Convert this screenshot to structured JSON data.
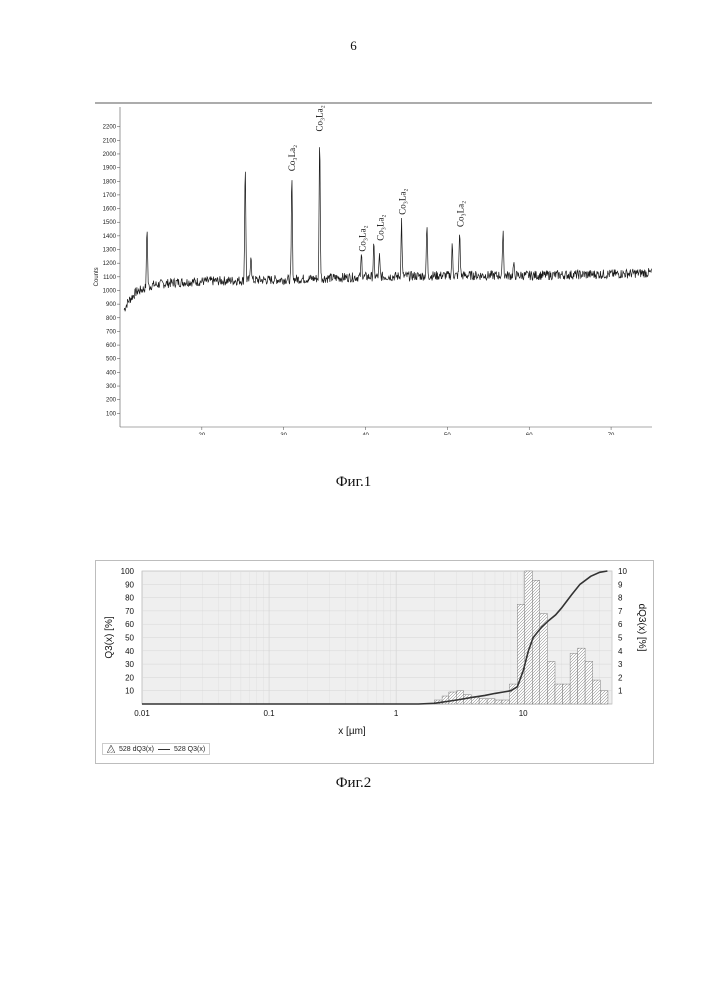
{
  "page": {
    "number": "6"
  },
  "fig1": {
    "caption": "Фиг.1",
    "chart_data": {
      "type": "line",
      "title": "",
      "xlabel": "",
      "ylabel": "Counts",
      "xlim": [
        10,
        75
      ],
      "ylim": [
        0,
        2300
      ],
      "xticks": [
        20,
        30,
        40,
        50,
        60,
        70
      ],
      "yticks": [
        100,
        200,
        300,
        400,
        500,
        600,
        700,
        800,
        900,
        1000,
        1100,
        1200,
        1300,
        1400,
        1500,
        1600,
        1700,
        1800,
        1900,
        2000,
        2100,
        2200
      ],
      "baseline": [
        [
          10.5,
          860
        ],
        [
          11,
          920
        ],
        [
          12,
          990
        ],
        [
          14,
          1040
        ],
        [
          17,
          1060
        ],
        [
          22,
          1070
        ],
        [
          30,
          1080
        ],
        [
          40,
          1100
        ],
        [
          50,
          1110
        ],
        [
          60,
          1110
        ],
        [
          70,
          1120
        ],
        [
          75,
          1130
        ]
      ],
      "peaks": [
        {
          "x": 13.3,
          "y": 1470
        },
        {
          "x": 25.3,
          "y": 1930
        },
        {
          "x": 26.0,
          "y": 1280
        },
        {
          "x": 31.0,
          "y": 1840
        },
        {
          "x": 34.4,
          "y": 2120
        },
        {
          "x": 39.5,
          "y": 1260
        },
        {
          "x": 41.0,
          "y": 1330
        },
        {
          "x": 41.7,
          "y": 1250
        },
        {
          "x": 44.4,
          "y": 1520
        },
        {
          "x": 47.5,
          "y": 1480
        },
        {
          "x": 50.6,
          "y": 1330
        },
        {
          "x": 51.5,
          "y": 1430
        },
        {
          "x": 56.8,
          "y": 1460
        },
        {
          "x": 58.1,
          "y": 1190
        }
      ],
      "annotations": [
        {
          "text": "Co₃La₂",
          "x": 31.0,
          "y": 1860
        },
        {
          "text": "Co₃La₂",
          "x": 34.4,
          "y": 2150
        },
        {
          "text": "Co₃La₂",
          "x": 39.6,
          "y": 1270
        },
        {
          "text": "Co₃La₂",
          "x": 41.8,
          "y": 1350
        },
        {
          "text": "Co₃La₂",
          "x": 44.5,
          "y": 1540
        },
        {
          "text": "Co₃La₂",
          "x": 51.6,
          "y": 1450
        }
      ]
    }
  },
  "fig2": {
    "caption": "Фиг.2",
    "chart_data": {
      "type": "bar",
      "xlabel": "x [µm]",
      "ylabel": "Q3(x) [%]",
      "y2label": "dQ3(x) [%]",
      "xscale": "log",
      "xlim": [
        0.01,
        50
      ],
      "ylim": [
        0,
        100
      ],
      "y2lim": [
        0,
        10
      ],
      "xticks": [
        "0.01",
        "0.1",
        "1",
        "10"
      ],
      "yticks": [
        10,
        20,
        30,
        40,
        50,
        60,
        70,
        80,
        90,
        100
      ],
      "y2ticks": [
        1,
        2,
        3,
        4,
        5,
        6,
        7,
        8,
        9,
        10
      ],
      "series": [
        {
          "name": "528 dQ3(x)",
          "type": "histogram",
          "x": [
            2.0,
            2.3,
            2.6,
            3.0,
            3.4,
            3.9,
            4.5,
            5.2,
            6.0,
            6.8,
            7.8,
            9.0,
            10.3,
            11.8,
            13.5,
            15.5,
            17.8,
            20.4,
            23.4,
            26.8,
            30.7,
            35.2,
            40.4
          ],
          "values": [
            0.3,
            0.6,
            0.9,
            1.0,
            0.7,
            0.5,
            0.4,
            0.4,
            0.3,
            0.3,
            1.5,
            7.5,
            10.0,
            9.3,
            6.8,
            3.2,
            1.5,
            1.5,
            3.8,
            4.2,
            3.2,
            1.8,
            1.0
          ]
        },
        {
          "name": "528 Q3(x)",
          "type": "line",
          "x": [
            0.01,
            1.5,
            2.0,
            3.0,
            4.0,
            5.0,
            6.0,
            7.0,
            8.0,
            9.0,
            10.0,
            11.0,
            12.0,
            14.0,
            16.0,
            18.0,
            20.0,
            24.0,
            28.0,
            34.0,
            40.0,
            46.0
          ],
          "values": [
            0,
            0,
            0.5,
            3,
            5,
            6.5,
            8,
            9,
            10,
            13,
            25,
            40,
            50,
            58,
            63,
            67,
            72,
            82,
            90,
            96,
            99,
            100
          ]
        }
      ],
      "legend": "bottom-left"
    }
  }
}
